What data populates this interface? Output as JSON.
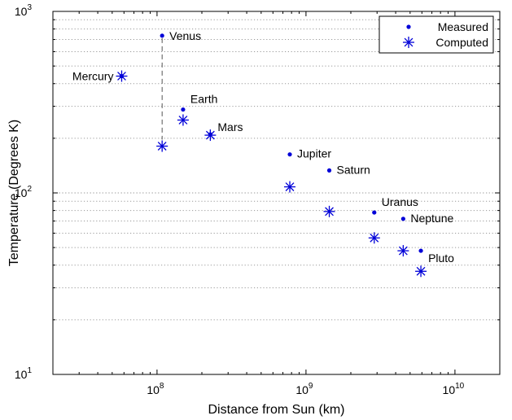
{
  "chart_data": {
    "type": "scatter",
    "title": "",
    "xlabel": "Distance from Sun (km)",
    "ylabel": "Temperature (Degrees K)",
    "xscale": "log",
    "yscale": "log",
    "xlim": [
      20000000,
      20000000000
    ],
    "ylim": [
      10,
      1000
    ],
    "grid": "y-dotted",
    "legend_position": "top-right",
    "x_ticks": [
      {
        "value": 100000000,
        "base": "10",
        "exp": "8"
      },
      {
        "value": 1000000000,
        "base": "10",
        "exp": "9"
      },
      {
        "value": 10000000000,
        "base": "10",
        "exp": "10"
      }
    ],
    "y_ticks": [
      {
        "value": 10,
        "base": "10",
        "exp": "1"
      },
      {
        "value": 100,
        "base": "10",
        "exp": "2"
      },
      {
        "value": 1000,
        "base": "10",
        "exp": "3"
      }
    ],
    "planets": [
      {
        "name": "Mercury",
        "distance": 57900000,
        "measured": 440,
        "computed": 440,
        "label_side": "left"
      },
      {
        "name": "Venus",
        "distance": 108200000,
        "measured": 735,
        "computed": 181,
        "label_side": "right"
      },
      {
        "name": "Earth",
        "distance": 149600000,
        "measured": 288,
        "computed": 252,
        "label_side": "right"
      },
      {
        "name": "Mars",
        "distance": 227900000,
        "measured": 210,
        "computed": 208,
        "label_side": "right"
      },
      {
        "name": "Jupiter",
        "distance": 778600000,
        "measured": 163,
        "computed": 108,
        "label_side": "right"
      },
      {
        "name": "Saturn",
        "distance": 1433500000,
        "measured": 133,
        "computed": 79,
        "label_side": "right"
      },
      {
        "name": "Uranus",
        "distance": 2872500000,
        "measured": 78,
        "computed": 56.5,
        "label_side": "right"
      },
      {
        "name": "Neptune",
        "distance": 4495100000,
        "measured": 72,
        "computed": 48,
        "label_side": "right"
      },
      {
        "name": "Pluto",
        "distance": 5906400000,
        "measured": 48,
        "computed": 37,
        "label_side": "right"
      }
    ],
    "series": [
      {
        "name": "Measured",
        "marker": "dot",
        "color": "#0000d8"
      },
      {
        "name": "Computed",
        "marker": "asterisk",
        "color": "#0000d8"
      }
    ],
    "annotation": {
      "type": "dashed-line",
      "planet": "Venus",
      "from": "measured",
      "to": "computed",
      "color": "#555555"
    }
  }
}
